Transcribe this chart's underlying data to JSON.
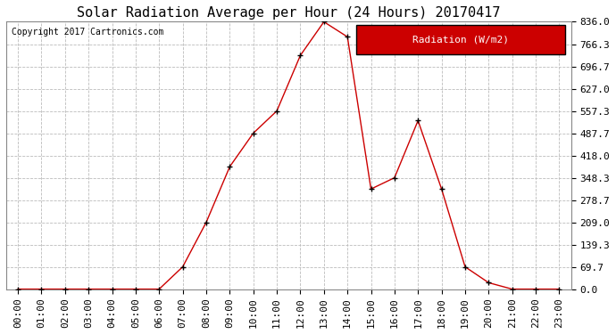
{
  "title": "Solar Radiation Average per Hour (24 Hours) 20170417",
  "copyright_text": "Copyright 2017 Cartronics.com",
  "legend_label": "Radiation (W/m2)",
  "hours": [
    "00:00",
    "01:00",
    "02:00",
    "03:00",
    "04:00",
    "05:00",
    "06:00",
    "07:00",
    "08:00",
    "09:00",
    "10:00",
    "11:00",
    "12:00",
    "13:00",
    "14:00",
    "15:00",
    "16:00",
    "17:00",
    "18:00",
    "19:00",
    "20:00",
    "21:00",
    "22:00",
    "23:00"
  ],
  "values": [
    0.0,
    0.0,
    0.0,
    0.0,
    0.0,
    0.0,
    0.0,
    69.7,
    209.0,
    383.0,
    487.7,
    557.3,
    731.0,
    836.0,
    789.0,
    313.0,
    348.3,
    527.0,
    313.0,
    69.7,
    20.0,
    0.0,
    0.0,
    0.0
  ],
  "line_color": "#cc0000",
  "marker": "+",
  "marker_color": "#000000",
  "marker_size": 5,
  "bg_color": "#ffffff",
  "grid_color": "#bbbbbb",
  "yticks": [
    0.0,
    69.7,
    139.3,
    209.0,
    278.7,
    348.3,
    418.0,
    487.7,
    557.3,
    627.0,
    696.7,
    766.3,
    836.0
  ],
  "ylim": [
    0.0,
    836.0
  ],
  "title_fontsize": 11,
  "tick_fontsize": 8,
  "legend_bg": "#cc0000",
  "legend_text_color": "#ffffff",
  "legend_fontsize": 8
}
